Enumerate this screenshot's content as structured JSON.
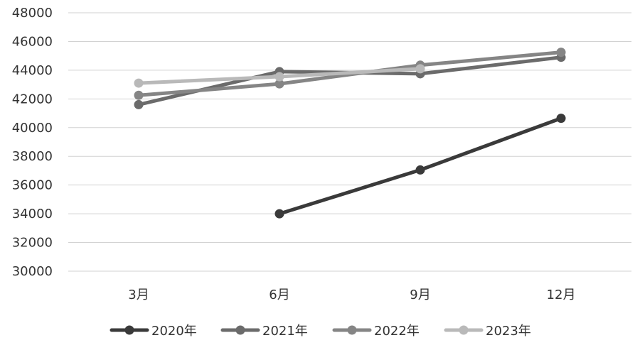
{
  "chart_data": {
    "type": "line",
    "title": "",
    "xlabel": "",
    "ylabel": "",
    "categories": [
      "3月",
      "6月",
      "9月",
      "12月"
    ],
    "ylim": [
      30000,
      48000
    ],
    "yticks": [
      "30000",
      "32000",
      "34000",
      "36000",
      "38000",
      "40000",
      "42000",
      "44000",
      "46000",
      "48000"
    ],
    "grid": "horizontal",
    "legend_position": "bottom",
    "series": [
      {
        "name": "2020年",
        "color": "#3a3a3a",
        "values": [
          null,
          34000,
          37050,
          40650
        ]
      },
      {
        "name": "2021年",
        "color": "#6b6b6b",
        "values": [
          41600,
          43900,
          43750,
          44900
        ]
      },
      {
        "name": "2022年",
        "color": "#858585",
        "values": [
          42250,
          43050,
          44350,
          45250
        ]
      },
      {
        "name": "2023年",
        "color": "#b9b9b9",
        "values": [
          43100,
          43550,
          44100,
          null
        ]
      }
    ]
  }
}
